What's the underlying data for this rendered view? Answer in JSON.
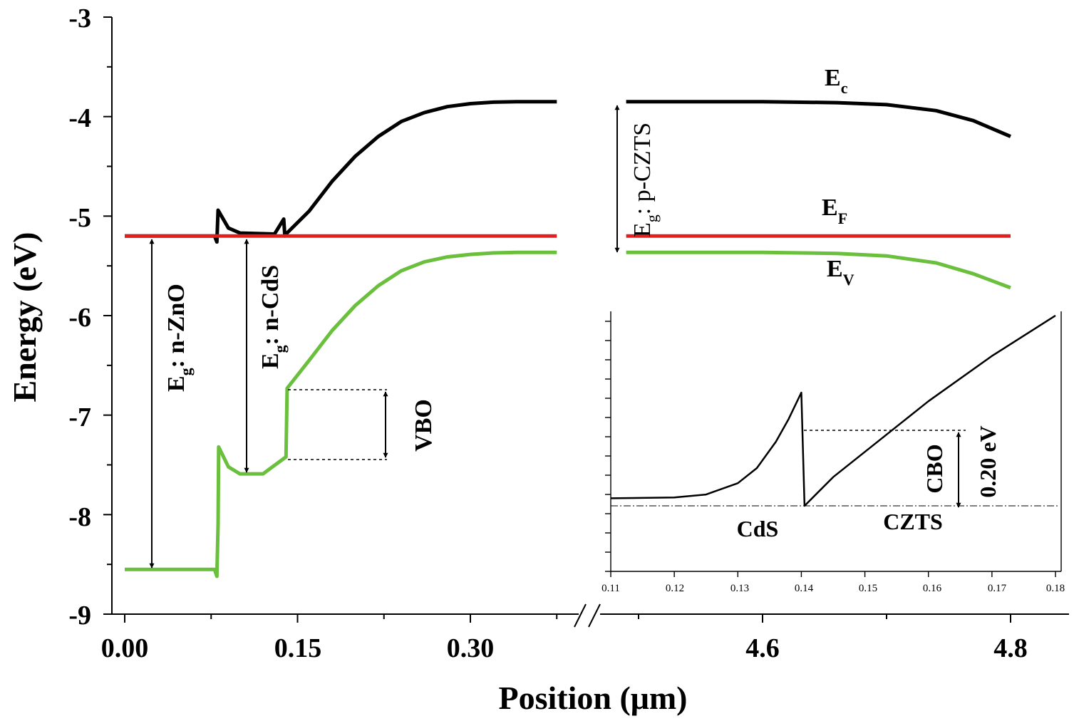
{
  "chart_data": {
    "type": "line",
    "title": "",
    "xlabel": "Position (μm)",
    "ylabel": "Energy (eV)",
    "ylim": [
      -9,
      -3
    ],
    "y_ticks": [
      "-3",
      "-4",
      "-5",
      "-6",
      "-7",
      "-8",
      "-9"
    ],
    "x_ticks_left": [
      "0.00",
      "0.15",
      "0.30"
    ],
    "x_ticks_right": [
      "4.6",
      "4.8"
    ],
    "x_axis_break": "between 0.40 and 4.5 μm",
    "series": [
      {
        "name": "Ec",
        "color": "#000000",
        "points_left": [
          [
            0.0,
            -5.2
          ],
          [
            0.078,
            -5.2
          ],
          [
            0.08,
            -5.26
          ],
          [
            0.081,
            -4.94
          ],
          [
            0.09,
            -5.12
          ],
          [
            0.1,
            -5.17
          ],
          [
            0.13,
            -5.18
          ],
          [
            0.138,
            -5.03
          ],
          [
            0.139,
            -5.2
          ],
          [
            0.14,
            -5.18
          ],
          [
            0.16,
            -4.95
          ],
          [
            0.18,
            -4.65
          ],
          [
            0.2,
            -4.4
          ],
          [
            0.22,
            -4.2
          ],
          [
            0.24,
            -4.05
          ],
          [
            0.26,
            -3.96
          ],
          [
            0.28,
            -3.9
          ],
          [
            0.3,
            -3.87
          ],
          [
            0.32,
            -3.855
          ],
          [
            0.34,
            -3.85
          ],
          [
            0.36,
            -3.85
          ],
          [
            0.375,
            -3.85
          ]
        ],
        "points_right": [
          [
            4.49,
            -3.85
          ],
          [
            4.6,
            -3.85
          ],
          [
            4.66,
            -3.86
          ],
          [
            4.7,
            -3.88
          ],
          [
            4.74,
            -3.94
          ],
          [
            4.77,
            -4.04
          ],
          [
            4.8,
            -4.2
          ]
        ]
      },
      {
        "name": "EF",
        "color": "#e02020",
        "points_left": [
          [
            0.0,
            -5.2
          ],
          [
            0.375,
            -5.2
          ]
        ],
        "points_right": [
          [
            4.49,
            -5.2
          ],
          [
            4.8,
            -5.2
          ]
        ]
      },
      {
        "name": "Ev",
        "color": "#6abf3c",
        "points_left": [
          [
            0.0,
            -8.55
          ],
          [
            0.078,
            -8.55
          ],
          [
            0.08,
            -8.62
          ],
          [
            0.081,
            -8.1
          ],
          [
            0.0815,
            -7.32
          ],
          [
            0.09,
            -7.52
          ],
          [
            0.1,
            -7.59
          ],
          [
            0.12,
            -7.59
          ],
          [
            0.14,
            -7.42
          ],
          [
            0.141,
            -6.73
          ],
          [
            0.16,
            -6.45
          ],
          [
            0.18,
            -6.15
          ],
          [
            0.2,
            -5.9
          ],
          [
            0.22,
            -5.7
          ],
          [
            0.24,
            -5.55
          ],
          [
            0.26,
            -5.46
          ],
          [
            0.28,
            -5.41
          ],
          [
            0.3,
            -5.385
          ],
          [
            0.32,
            -5.37
          ],
          [
            0.34,
            -5.365
          ],
          [
            0.36,
            -5.365
          ],
          [
            0.375,
            -5.365
          ]
        ],
        "points_right": [
          [
            4.49,
            -5.365
          ],
          [
            4.6,
            -5.365
          ],
          [
            4.66,
            -5.375
          ],
          [
            4.7,
            -5.4
          ],
          [
            4.74,
            -5.47
          ],
          [
            4.77,
            -5.58
          ],
          [
            4.8,
            -5.72
          ]
        ]
      }
    ],
    "band_labels": {
      "ec_main": "E",
      "ec_sub": "c",
      "ef_main": "E",
      "ef_sub": "F",
      "ev_main": "E",
      "ev_sub": "V"
    },
    "annotations": {
      "zno_pre": "E",
      "zno_sub": "g",
      "zno_post": ": n-ZnO",
      "cds_pre": "E",
      "cds_sub": "g",
      "cds_post": ": n-CdS",
      "czts_pre": "E",
      "czts_sub": "g",
      "czts_post": ": p-CZTS",
      "vbo": "VBO"
    },
    "inset": {
      "type": "line",
      "xlim": [
        0.11,
        0.18
      ],
      "x_ticks": [
        "0.11",
        "0.12",
        "0.13",
        "0.14",
        "0.15",
        "0.16",
        "0.17",
        "0.18"
      ],
      "points": [
        [
          0.11,
          0.02
        ],
        [
          0.12,
          0.022
        ],
        [
          0.125,
          0.03
        ],
        [
          0.13,
          0.06
        ],
        [
          0.133,
          0.1
        ],
        [
          0.136,
          0.17
        ],
        [
          0.138,
          0.23
        ],
        [
          0.14,
          0.3
        ],
        [
          0.1405,
          0.0
        ],
        [
          0.145,
          0.076
        ],
        [
          0.15,
          0.143
        ],
        [
          0.16,
          0.277
        ],
        [
          0.17,
          0.397
        ],
        [
          0.18,
          0.504
        ]
      ],
      "labels": {
        "cds": "CdS",
        "czts": "CZTS",
        "cbo": "CBO",
        "cbo_value": "0.20 eV"
      }
    }
  }
}
